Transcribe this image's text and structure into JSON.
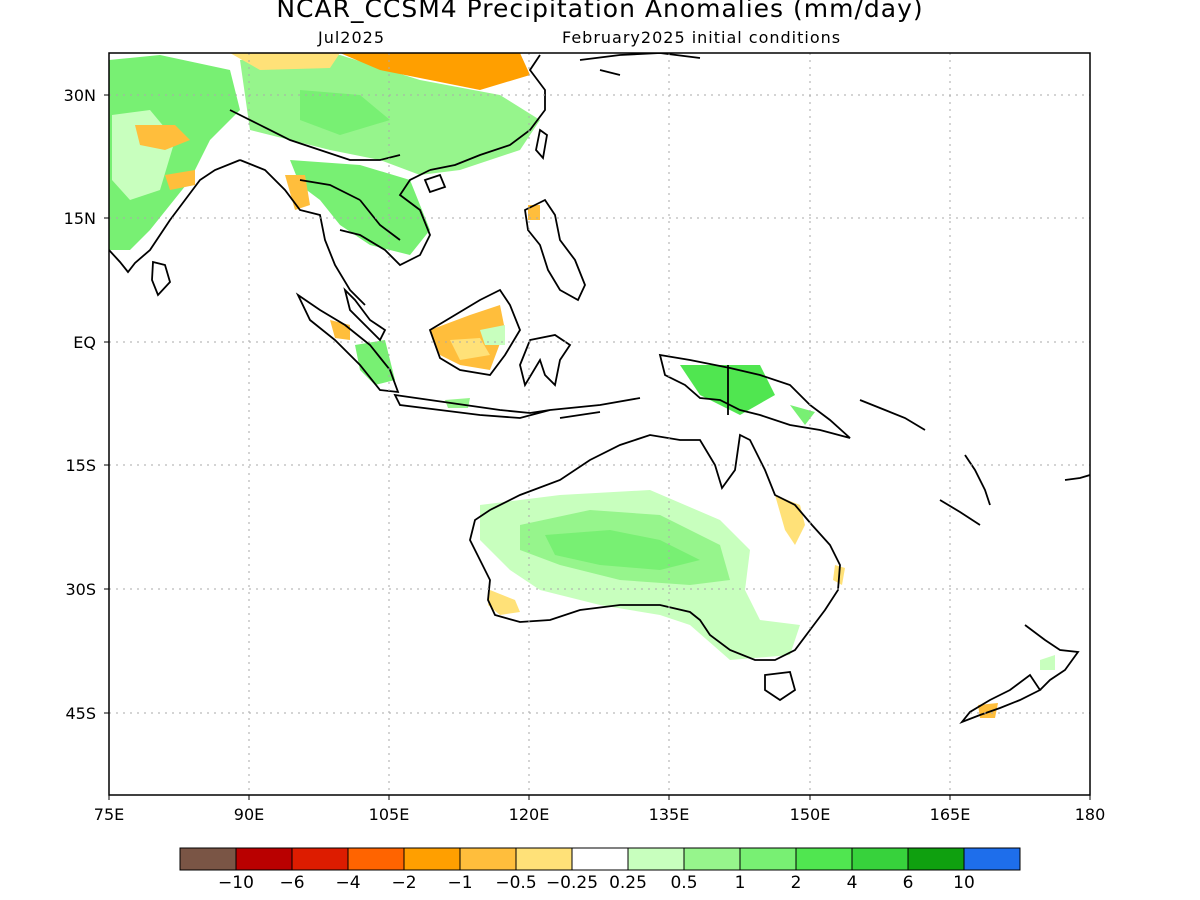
{
  "title": "NCAR_CCSM4 Precipitation Anomalies (mm/day)",
  "target_month": "Jul2025",
  "initial_conditions": "February2025 initial conditions",
  "lat_labels": [
    "30N",
    "15N",
    "EQ",
    "15S",
    "30S",
    "45S"
  ],
  "lon_labels": [
    "75E",
    "90E",
    "105E",
    "120E",
    "135E",
    "150E",
    "165E",
    "180"
  ],
  "colorbar": {
    "colors": [
      "#7a5545",
      "#b90000",
      "#dd1c00",
      "#ff6400",
      "#ff9f00",
      "#ffbe3c",
      "#ffe178",
      "#ffffff",
      "#c8ffbe",
      "#96f58c",
      "#78f073",
      "#50e650",
      "#37d23c",
      "#0fa00f",
      "#1e6eeb"
    ],
    "labels": [
      "−10",
      "−6",
      "−4",
      "−2",
      "−1",
      "−0.5",
      "−0.25",
      "0.25",
      "0.5",
      "1",
      "2",
      "4",
      "6",
      "10"
    ]
  }
}
